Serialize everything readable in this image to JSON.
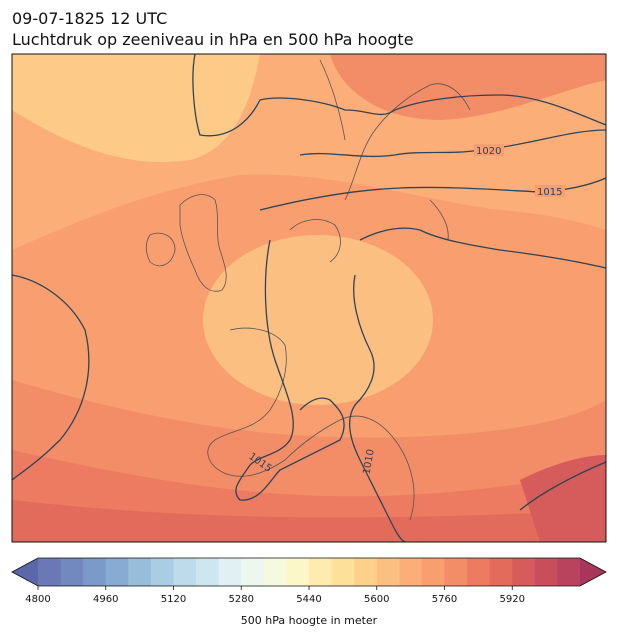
{
  "header": {
    "timestamp": "09-07-1825 12 UTC",
    "subtitle": "Luchtdruk op zeeniveau in hPa en 500 hPa hoogte"
  },
  "map": {
    "isobar_labels": [
      "1020",
      "1015",
      "1015",
      "1010"
    ]
  },
  "colorbar": {
    "label": "500 hPa hoogte in meter",
    "ticks": [
      "4800",
      "4960",
      "5120",
      "5280",
      "5440",
      "5600",
      "5760",
      "5920"
    ],
    "colors": [
      "#6a78b5",
      "#7289c0",
      "#7b9ac9",
      "#87abd3",
      "#98bddb",
      "#aacde3",
      "#bddbea",
      "#cfe6f0",
      "#e0f0f3",
      "#edf7ee",
      "#f5f9df",
      "#fcf7c9",
      "#fdecad",
      "#fde09a",
      "#fdd08b",
      "#fcbf82",
      "#fbae78",
      "#f89e6f",
      "#f38d67",
      "#ec7b61",
      "#e26b5c",
      "#d65c5b",
      "#c84e5b",
      "#b9425c"
    ],
    "under_color": "#5a67ab",
    "over_color": "#a8365a"
  }
}
